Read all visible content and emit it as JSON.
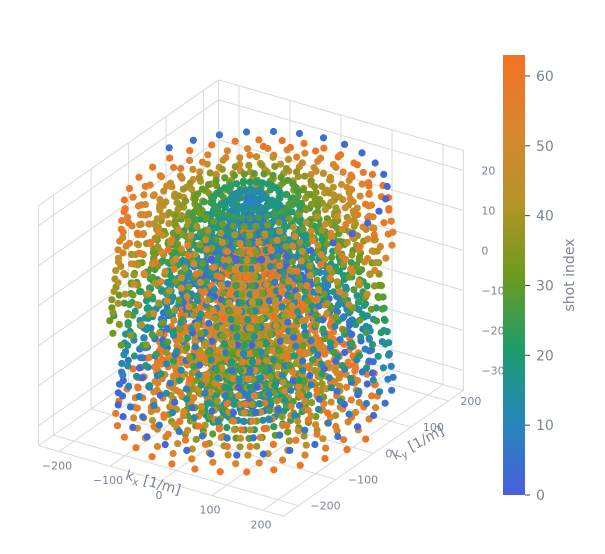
{
  "chart_data": {
    "type": "scatter3d",
    "description_free": true,
    "x_axis": {
      "label": "k",
      "label_subscript": "x",
      "label_unit": " [1/m]",
      "ticks": [
        -200,
        -100,
        0,
        100,
        200
      ],
      "tick_labels": [
        "−200",
        "−100",
        "0",
        "100",
        "200"
      ],
      "range": [
        -240,
        240
      ]
    },
    "y_axis": {
      "label": "k",
      "label_subscript": "y",
      "label_unit": " [1/m]",
      "ticks": [
        -200,
        -100,
        0,
        100,
        200
      ],
      "tick_labels": [
        "−200",
        "−100",
        "0",
        "100",
        "200"
      ],
      "range": [
        -240,
        240
      ]
    },
    "z_axis": {
      "ticks": [
        -30,
        -20,
        -10,
        0,
        10,
        20
      ],
      "tick_labels": [
        "−30",
        "−20",
        "−10",
        "0",
        "10",
        "20"
      ],
      "range": [
        -35,
        25
      ]
    },
    "trajectory": {
      "kind": "stacked spirals",
      "max_radius": 225,
      "turns_per_layer": 8,
      "layers_kz": [
        -32,
        -28,
        -24,
        -20,
        -16,
        -12,
        -8,
        -4,
        0,
        4,
        8,
        12,
        16,
        20
      ]
    },
    "colorbar": {
      "title": "shot index",
      "min": 0,
      "max": 63,
      "ticks": [
        0,
        10,
        20,
        30,
        40,
        50,
        60
      ],
      "tick_labels": [
        "0",
        "10",
        "20",
        "30",
        "40",
        "50",
        "60"
      ],
      "colorscale": [
        "#4a5fe0",
        "#2587b9",
        "#1e9d6b",
        "#6e9a1e",
        "#b69328",
        "#d9862e",
        "#f27223"
      ]
    },
    "grid": true,
    "colors": {
      "grid": "#d9d9d9",
      "tick_text": "#7a8594",
      "axis_title": "#7a8594"
    }
  }
}
